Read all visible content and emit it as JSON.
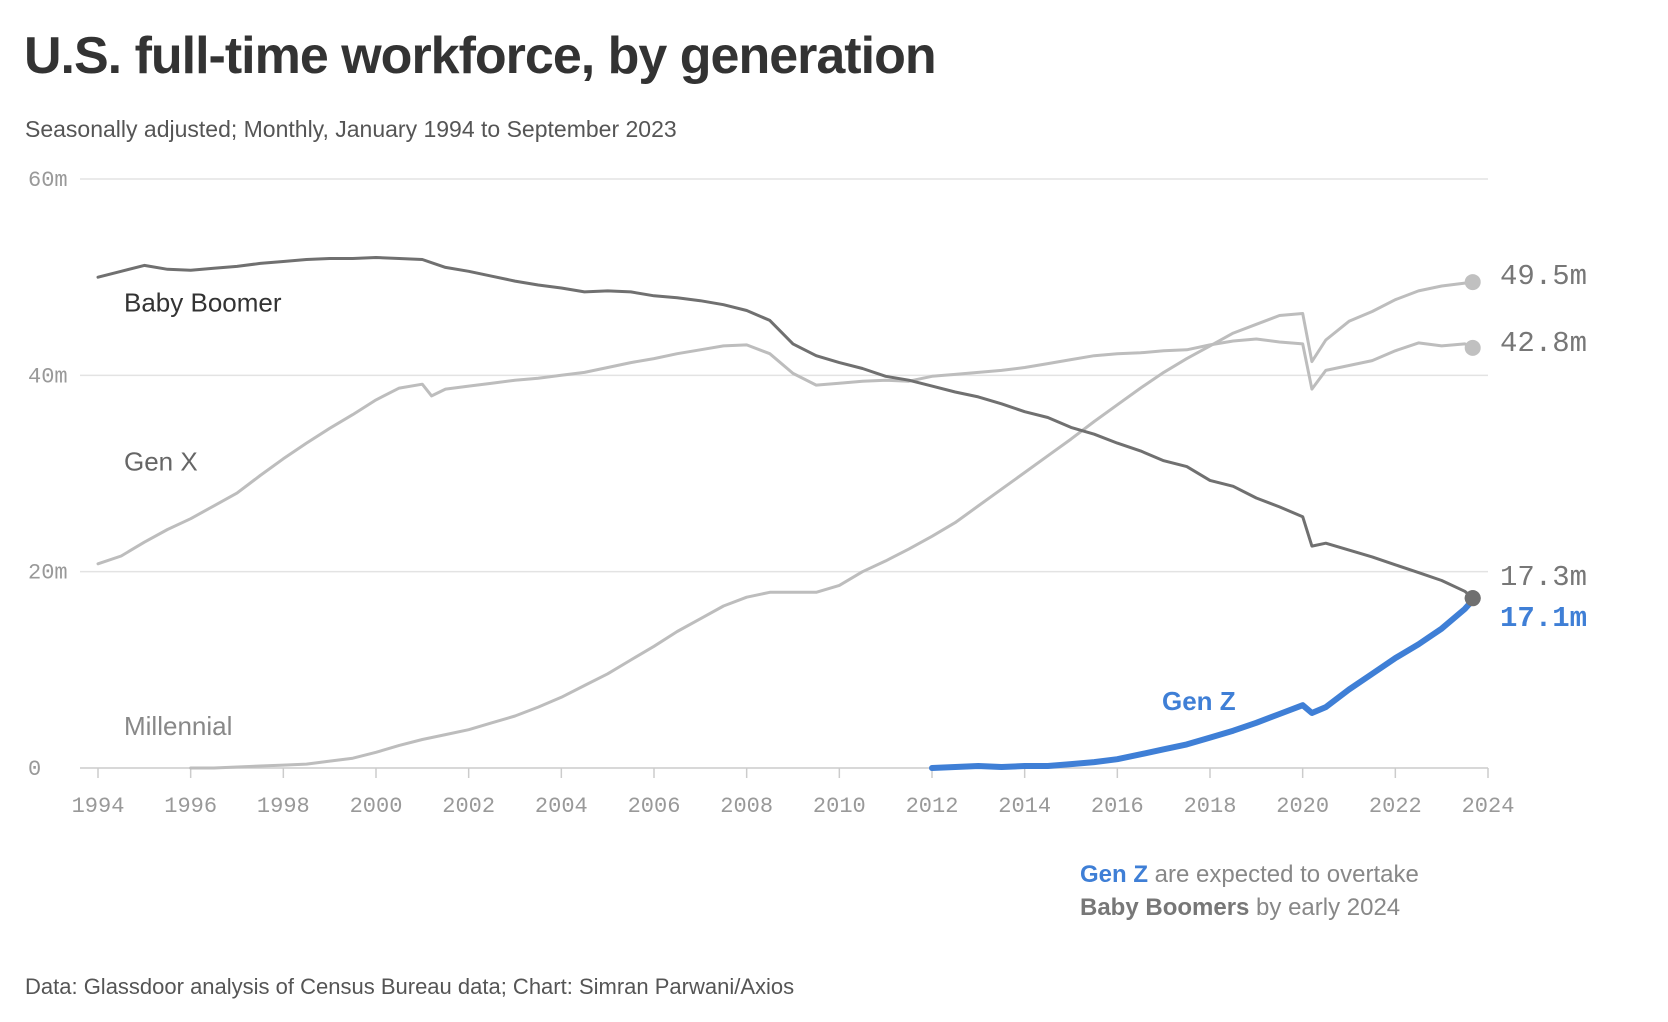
{
  "title": "U.S. full-time workforce, by generation",
  "subtitle": "Seasonally adjusted; Monthly, January 1994 to September 2023",
  "source": "Data: Glassdoor analysis of Census Bureau data; Chart: Simran Parwani/Axios",
  "annotation": {
    "part1_bold": "Gen Z",
    "part1_rest": " are expected to overtake",
    "part2_bold": "Baby Boomers",
    "part2_rest": " by early 2024"
  },
  "colors": {
    "baby_boomer": "#707070",
    "gen_x": "#bdbdbd",
    "millennial": "#bdbdbd",
    "gen_z": "#3f7fd6",
    "grid": "#e3e3e3",
    "tick": "#999999"
  },
  "chart_data": {
    "type": "line",
    "title": "U.S. full-time workforce, by generation",
    "xlabel": "",
    "ylabel": "",
    "xlim": [
      1994,
      2024
    ],
    "ylim": [
      0,
      60
    ],
    "grid": true,
    "x_ticks": [
      1994,
      1996,
      1998,
      2000,
      2002,
      2004,
      2006,
      2008,
      2010,
      2012,
      2014,
      2016,
      2018,
      2020,
      2022,
      2024
    ],
    "y_ticks": [
      {
        "value": 0,
        "label": "0"
      },
      {
        "value": 20,
        "label": "20m"
      },
      {
        "value": 40,
        "label": "40m"
      },
      {
        "value": 60,
        "label": "60m"
      }
    ],
    "series": [
      {
        "name": "Baby Boomer",
        "label": "Baby Boomer",
        "end_label": "17.3m",
        "end_value": 17.3,
        "x": [
          1994.0,
          1994.5,
          1995.0,
          1995.5,
          1996.0,
          1996.5,
          1997.0,
          1997.5,
          1998.0,
          1998.5,
          1999.0,
          1999.5,
          2000.0,
          2000.5,
          2001.0,
          2001.5,
          2002.0,
          2002.5,
          2003.0,
          2003.5,
          2004.0,
          2004.5,
          2005.0,
          2005.5,
          2006.0,
          2006.5,
          2007.0,
          2007.5,
          2008.0,
          2008.5,
          2009.0,
          2009.5,
          2010.0,
          2010.5,
          2011.0,
          2011.5,
          2012.0,
          2012.5,
          2013.0,
          2013.5,
          2014.0,
          2014.5,
          2015.0,
          2015.5,
          2016.0,
          2016.5,
          2017.0,
          2017.5,
          2018.0,
          2018.5,
          2019.0,
          2019.5,
          2020.0,
          2020.2,
          2020.5,
          2021.0,
          2021.5,
          2022.0,
          2022.5,
          2023.0,
          2023.5,
          2023.67
        ],
        "values": [
          50.0,
          50.6,
          51.2,
          50.8,
          50.7,
          50.9,
          51.1,
          51.4,
          51.6,
          51.8,
          51.9,
          51.9,
          52.0,
          51.9,
          51.8,
          51.0,
          50.6,
          50.1,
          49.6,
          49.2,
          48.9,
          48.5,
          48.6,
          48.5,
          48.1,
          47.9,
          47.6,
          47.2,
          46.6,
          45.6,
          43.2,
          42.0,
          41.3,
          40.7,
          39.9,
          39.5,
          38.9,
          38.3,
          37.8,
          37.1,
          36.3,
          35.7,
          34.7,
          34.0,
          33.1,
          32.3,
          31.3,
          30.7,
          29.3,
          28.7,
          27.5,
          26.6,
          25.6,
          22.6,
          22.9,
          22.2,
          21.5,
          20.7,
          19.9,
          19.1,
          18.0,
          17.3
        ]
      },
      {
        "name": "Gen X",
        "label": "Gen X",
        "end_label": "42.8m",
        "end_value": 42.8,
        "x": [
          1994.0,
          1994.5,
          1995.0,
          1995.5,
          1996.0,
          1996.5,
          1997.0,
          1997.5,
          1998.0,
          1998.5,
          1999.0,
          1999.5,
          2000.0,
          2000.5,
          2001.0,
          2001.2,
          2001.5,
          2002.0,
          2002.5,
          2003.0,
          2003.5,
          2004.0,
          2004.5,
          2005.0,
          2005.5,
          2006.0,
          2006.5,
          2007.0,
          2007.5,
          2008.0,
          2008.5,
          2009.0,
          2009.5,
          2010.0,
          2010.5,
          2011.0,
          2011.5,
          2012.0,
          2012.5,
          2013.0,
          2013.5,
          2014.0,
          2014.5,
          2015.0,
          2015.5,
          2016.0,
          2016.5,
          2017.0,
          2017.5,
          2018.0,
          2018.5,
          2019.0,
          2019.5,
          2020.0,
          2020.2,
          2020.5,
          2021.0,
          2021.5,
          2022.0,
          2022.5,
          2023.0,
          2023.5,
          2023.67
        ],
        "values": [
          20.8,
          21.6,
          23.0,
          24.3,
          25.4,
          26.7,
          28.0,
          29.8,
          31.5,
          33.1,
          34.6,
          36.0,
          37.5,
          38.7,
          39.1,
          37.9,
          38.6,
          38.9,
          39.2,
          39.5,
          39.7,
          40.0,
          40.3,
          40.8,
          41.3,
          41.7,
          42.2,
          42.6,
          43.0,
          43.1,
          42.2,
          40.2,
          39.0,
          39.2,
          39.4,
          39.5,
          39.4,
          39.9,
          40.1,
          40.3,
          40.5,
          40.8,
          41.2,
          41.6,
          42.0,
          42.2,
          42.3,
          42.5,
          42.6,
          43.1,
          43.5,
          43.7,
          43.4,
          43.2,
          38.6,
          40.5,
          41.0,
          41.5,
          42.5,
          43.3,
          43.0,
          43.2,
          42.8
        ]
      },
      {
        "name": "Millennial",
        "label": "Millennial",
        "end_label": "49.5m",
        "end_value": 49.5,
        "x": [
          1996.0,
          1996.5,
          1997.0,
          1997.5,
          1998.0,
          1998.5,
          1999.0,
          1999.5,
          2000.0,
          2000.5,
          2001.0,
          2001.5,
          2002.0,
          2002.5,
          2003.0,
          2003.5,
          2004.0,
          2004.5,
          2005.0,
          2005.5,
          2006.0,
          2006.5,
          2007.0,
          2007.5,
          2008.0,
          2008.5,
          2009.0,
          2009.5,
          2010.0,
          2010.5,
          2011.0,
          2011.5,
          2012.0,
          2012.5,
          2013.0,
          2013.5,
          2014.0,
          2014.5,
          2015.0,
          2015.5,
          2016.0,
          2016.5,
          2017.0,
          2017.5,
          2018.0,
          2018.5,
          2019.0,
          2019.5,
          2020.0,
          2020.2,
          2020.5,
          2021.0,
          2021.5,
          2022.0,
          2022.5,
          2023.0,
          2023.5,
          2023.67
        ],
        "values": [
          0.0,
          0.0,
          0.1,
          0.2,
          0.3,
          0.4,
          0.7,
          1.0,
          1.6,
          2.3,
          2.9,
          3.4,
          3.9,
          4.6,
          5.3,
          6.2,
          7.2,
          8.4,
          9.6,
          11.0,
          12.4,
          13.9,
          15.2,
          16.5,
          17.4,
          17.9,
          17.9,
          17.9,
          18.6,
          20.0,
          21.1,
          22.3,
          23.6,
          25.0,
          26.7,
          28.4,
          30.1,
          31.8,
          33.5,
          35.3,
          37.0,
          38.7,
          40.3,
          41.7,
          43.0,
          44.3,
          45.2,
          46.1,
          46.3,
          41.4,
          43.6,
          45.5,
          46.5,
          47.7,
          48.6,
          49.1,
          49.4,
          49.5
        ]
      },
      {
        "name": "Gen Z",
        "label": "Gen Z",
        "end_label": "17.1m",
        "end_value": 17.1,
        "x": [
          2012.0,
          2012.5,
          2013.0,
          2013.5,
          2014.0,
          2014.5,
          2015.0,
          2015.5,
          2016.0,
          2016.5,
          2017.0,
          2017.5,
          2018.0,
          2018.5,
          2019.0,
          2019.5,
          2020.0,
          2020.2,
          2020.5,
          2021.0,
          2021.5,
          2022.0,
          2022.5,
          2023.0,
          2023.5,
          2023.67
        ],
        "values": [
          0.0,
          0.1,
          0.2,
          0.1,
          0.2,
          0.2,
          0.4,
          0.6,
          0.9,
          1.4,
          1.9,
          2.4,
          3.1,
          3.8,
          4.6,
          5.5,
          6.4,
          5.6,
          6.2,
          8.0,
          9.6,
          11.2,
          12.6,
          14.2,
          16.2,
          17.1
        ]
      }
    ]
  }
}
